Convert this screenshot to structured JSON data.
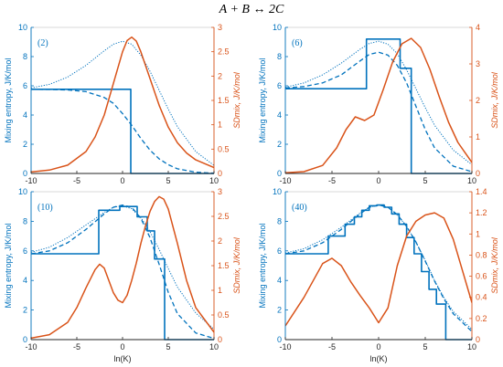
{
  "figure": {
    "title": "A + B ↔ 2C",
    "colors": {
      "blue": "#0072BD",
      "orange": "#D95319",
      "axis_black": "#262626",
      "frame_gray": "#d0d0d0"
    }
  },
  "chart_data": [
    {
      "type": "line",
      "panel_label": "(2)",
      "xlim": [
        -10,
        10
      ],
      "xticks": [
        "-10",
        "-5",
        "0",
        "5",
        "10"
      ],
      "xlabel": "",
      "ylim_left": [
        0,
        10
      ],
      "yticks_left": [
        "0",
        "2",
        "4",
        "6",
        "8",
        "10"
      ],
      "ylabel_left": "Mixing entropy, J/K/mol",
      "ylim_right": [
        0,
        3
      ],
      "yticks_right": [
        "0",
        "0.5",
        "1",
        "1.5",
        "2",
        "2.5",
        "3"
      ],
      "ylabel_right": "SDmix, J/K/mol",
      "series": [
        {
          "style": "step",
          "axis": "left",
          "x": [
            -10,
            0.9,
            0.9,
            10
          ],
          "y": [
            5.76,
            5.76,
            0,
            0
          ]
        },
        {
          "style": "dashed",
          "axis": "left",
          "x": [
            -10,
            -8,
            -6,
            -4,
            -2,
            -1,
            0,
            1,
            2,
            3,
            4,
            5,
            6,
            8,
            10
          ],
          "y": [
            5.76,
            5.75,
            5.72,
            5.6,
            5.2,
            4.8,
            4.1,
            3.3,
            2.4,
            1.6,
            1.0,
            0.6,
            0.32,
            0.09,
            0.02
          ]
        },
        {
          "style": "dotted",
          "axis": "left",
          "x": [
            -10,
            -8,
            -6,
            -4,
            -2,
            -1,
            0,
            1,
            2,
            3,
            4,
            5,
            6,
            8,
            10
          ],
          "y": [
            5.85,
            6.1,
            6.6,
            7.4,
            8.4,
            8.85,
            9.05,
            8.85,
            8.1,
            7.0,
            5.7,
            4.4,
            3.2,
            1.5,
            0.55
          ]
        },
        {
          "style": "solid",
          "axis": "right",
          "x": [
            -10,
            -8,
            -6,
            -4,
            -3,
            -2,
            -1,
            0,
            0.5,
            1,
            1.5,
            2,
            3,
            4,
            5,
            6,
            7,
            8,
            10
          ],
          "y": [
            0.03,
            0.07,
            0.17,
            0.45,
            0.75,
            1.2,
            1.85,
            2.5,
            2.73,
            2.8,
            2.72,
            2.5,
            1.95,
            1.4,
            0.95,
            0.63,
            0.42,
            0.28,
            0.12
          ]
        }
      ]
    },
    {
      "type": "line",
      "panel_label": "(6)",
      "xlim": [
        -10,
        10
      ],
      "xticks": [
        "-10",
        "-5",
        "0",
        "5",
        "10"
      ],
      "xlabel": "",
      "ylim_left": [
        0,
        10
      ],
      "yticks_left": [
        "0",
        "2",
        "4",
        "6",
        "8",
        "10"
      ],
      "ylabel_left": "Mixing entropy, J/K/mol",
      "ylim_right": [
        0,
        4
      ],
      "yticks_right": [
        "0",
        "1",
        "2",
        "3",
        "4"
      ],
      "ylabel_right": "SDmix, J/K/mol",
      "series": [
        {
          "style": "step",
          "axis": "left",
          "x": [
            -10,
            -6.2,
            -6.2,
            -1.3,
            -1.3,
            -0.9,
            -0.9,
            2.3,
            2.3,
            3.5,
            3.5,
            10
          ],
          "y": [
            5.8,
            5.8,
            5.8,
            5.8,
            9.2,
            9.2,
            9.2,
            9.2,
            7.2,
            7.2,
            0,
            0
          ]
        },
        {
          "style": "dashed",
          "axis": "left",
          "x": [
            -10,
            -8,
            -6,
            -4,
            -2,
            -1,
            0,
            1,
            2,
            3,
            4,
            5,
            6,
            8,
            10
          ],
          "y": [
            5.85,
            5.95,
            6.2,
            6.75,
            7.7,
            8.15,
            8.3,
            8.1,
            7.4,
            6.2,
            4.6,
            3.0,
            1.75,
            0.5,
            0.12
          ]
        },
        {
          "style": "dotted",
          "axis": "left",
          "x": [
            -10,
            -8,
            -6,
            -4,
            -2,
            -1,
            0,
            1,
            2,
            3,
            4,
            5,
            6,
            8,
            10
          ],
          "y": [
            5.9,
            6.2,
            6.75,
            7.55,
            8.5,
            8.9,
            9.05,
            8.85,
            8.2,
            7.1,
            5.8,
            4.5,
            3.3,
            1.6,
            0.6
          ]
        },
        {
          "style": "solid",
          "axis": "right",
          "x": [
            -10,
            -8,
            -6,
            -4.5,
            -3.5,
            -2.5,
            -1.5,
            -0.5,
            0.5,
            1.5,
            2.5,
            3.5,
            4.5,
            5.5,
            6.5,
            7.5,
            8.5,
            10
          ],
          "y": [
            0.02,
            0.05,
            0.22,
            0.7,
            1.2,
            1.55,
            1.45,
            1.6,
            2.3,
            3.05,
            3.55,
            3.7,
            3.45,
            2.85,
            2.1,
            1.4,
            0.85,
            0.3
          ]
        }
      ]
    },
    {
      "type": "line",
      "panel_label": "(10)",
      "xlim": [
        -10,
        10
      ],
      "xticks": [
        "-10",
        "-5",
        "0",
        "5",
        "10"
      ],
      "xlabel": "ln(K)",
      "ylim_left": [
        0,
        10
      ],
      "yticks_left": [
        "0",
        "2",
        "4",
        "6",
        "8",
        "10"
      ],
      "ylabel_left": "Mixing entropy, J/K/mol",
      "ylim_right": [
        0,
        3
      ],
      "yticks_right": [
        "0",
        "0.5",
        "1",
        "1.5",
        "2",
        "2.5",
        "3"
      ],
      "ylabel_right": "SDmix, J/K/mol",
      "series": [
        {
          "style": "step",
          "axis": "left",
          "x": [
            -10,
            -4.8,
            -4.8,
            -2.6,
            -2.6,
            -0.3,
            -0.3,
            1.6,
            1.6,
            2.7,
            2.7,
            3.5,
            3.5,
            4.6,
            4.6,
            10
          ],
          "y": [
            5.8,
            5.8,
            5.8,
            5.8,
            8.75,
            8.75,
            9.0,
            9.0,
            8.3,
            8.3,
            7.35,
            7.35,
            5.45,
            5.45,
            0,
            0
          ]
        },
        {
          "style": "dashed",
          "axis": "left",
          "x": [
            -10,
            -8,
            -6,
            -4,
            -2,
            -1,
            0,
            1,
            2,
            3,
            4,
            5,
            6,
            8,
            10
          ],
          "y": [
            5.8,
            6.0,
            6.55,
            7.45,
            8.5,
            8.95,
            9.1,
            8.95,
            8.2,
            6.9,
            5.1,
            3.2,
            1.75,
            0.45,
            0.08
          ]
        },
        {
          "style": "dotted",
          "axis": "left",
          "x": [
            -10,
            -8,
            -6,
            -4,
            -2,
            -1,
            0,
            1,
            2,
            3,
            4,
            5,
            6,
            8,
            10
          ],
          "y": [
            5.9,
            6.25,
            6.9,
            7.75,
            8.6,
            8.95,
            9.05,
            8.85,
            8.25,
            7.3,
            6.1,
            4.8,
            3.55,
            1.8,
            0.7
          ]
        },
        {
          "style": "solid",
          "axis": "right",
          "x": [
            -10,
            -8,
            -6,
            -5,
            -4,
            -3,
            -2.5,
            -2,
            -1.5,
            -1,
            -0.5,
            0,
            0.5,
            1,
            1.5,
            2,
            2.5,
            3,
            3.5,
            4,
            4.5,
            5,
            6,
            7,
            8,
            10
          ],
          "y": [
            0.03,
            0.1,
            0.35,
            0.65,
            1.05,
            1.42,
            1.53,
            1.45,
            1.2,
            0.95,
            0.8,
            0.75,
            0.9,
            1.2,
            1.55,
            1.95,
            2.3,
            2.6,
            2.8,
            2.9,
            2.85,
            2.65,
            1.95,
            1.2,
            0.65,
            0.15
          ]
        }
      ]
    },
    {
      "type": "line",
      "panel_label": "(40)",
      "xlim": [
        -10,
        10
      ],
      "xticks": [
        "-10",
        "-5",
        "0",
        "5",
        "10"
      ],
      "xlabel": "ln(K)",
      "ylim_left": [
        0,
        10
      ],
      "yticks_left": [
        "0",
        "2",
        "4",
        "6",
        "8",
        "10"
      ],
      "ylabel_left": "Mixing entropy, J/K/mol",
      "ylim_right": [
        0,
        1.4
      ],
      "yticks_right": [
        "0",
        "0.2",
        "0.4",
        "0.6",
        "0.8",
        "1",
        "1.2",
        "1.4"
      ],
      "ylabel_right": "SDmix, J/K/mol",
      "series": [
        {
          "style": "step",
          "axis": "left",
          "x": [
            -10,
            -5.4,
            -5.4,
            -3.6,
            -3.6,
            -2.6,
            -2.6,
            -1.8,
            -1.8,
            -1.0,
            -1.0,
            -0.2,
            -0.2,
            0.6,
            0.6,
            1.4,
            1.4,
            2.2,
            2.2,
            3.0,
            3.0,
            3.8,
            3.8,
            4.6,
            4.6,
            5.4,
            5.4,
            6.2,
            6.2,
            7.2,
            7.2,
            10
          ],
          "y": [
            5.8,
            5.8,
            7.0,
            7.0,
            7.8,
            7.8,
            8.3,
            8.3,
            8.75,
            8.75,
            9.05,
            9.05,
            9.1,
            9.1,
            8.95,
            8.95,
            8.5,
            8.5,
            7.8,
            7.8,
            6.9,
            6.9,
            5.8,
            5.8,
            4.6,
            4.6,
            3.4,
            3.4,
            2.4,
            2.4,
            0,
            0
          ]
        },
        {
          "style": "dashed",
          "axis": "left",
          "x": [
            -10,
            -8,
            -6,
            -4,
            -2,
            -1,
            0,
            1,
            2,
            3,
            4,
            5,
            6,
            7,
            8,
            10
          ],
          "y": [
            5.8,
            6.0,
            6.55,
            7.45,
            8.5,
            8.95,
            9.1,
            8.95,
            8.45,
            7.65,
            6.6,
            5.3,
            3.95,
            2.75,
            1.75,
            0.55
          ]
        },
        {
          "style": "dotted",
          "axis": "left",
          "x": [
            -10,
            -8,
            -6,
            -4,
            -2,
            -1,
            0,
            1,
            2,
            3,
            4,
            5,
            6,
            7,
            8,
            10
          ],
          "y": [
            5.85,
            6.15,
            6.75,
            7.6,
            8.55,
            8.95,
            9.1,
            8.95,
            8.45,
            7.65,
            6.6,
            5.35,
            4.0,
            2.85,
            1.9,
            0.7
          ]
        },
        {
          "style": "solid",
          "axis": "right",
          "x": [
            -10,
            -8,
            -6,
            -5,
            -4,
            -3,
            -2,
            -1,
            0,
            1,
            2,
            3,
            4,
            5,
            6,
            7,
            8,
            9,
            10
          ],
          "y": [
            0.13,
            0.4,
            0.72,
            0.77,
            0.7,
            0.55,
            0.42,
            0.3,
            0.16,
            0.3,
            0.7,
            0.98,
            1.12,
            1.18,
            1.2,
            1.15,
            0.95,
            0.65,
            0.35
          ]
        }
      ]
    }
  ]
}
